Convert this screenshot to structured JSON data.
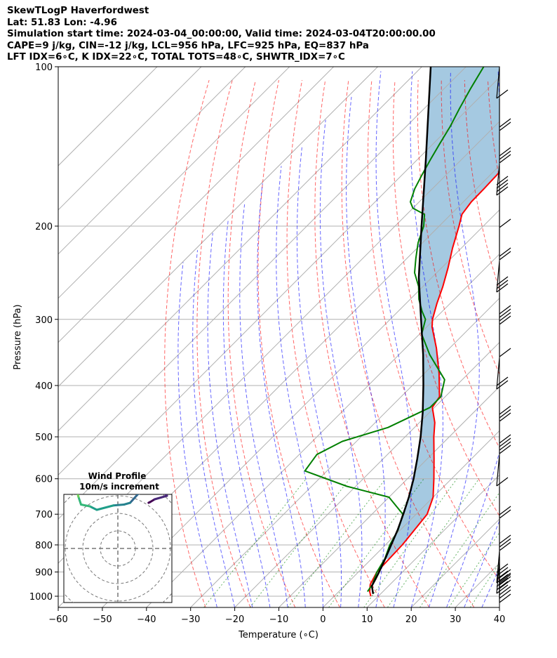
{
  "header": {
    "title": "SkewTLogP Haverfordwest",
    "location": "Lat: 51.83   Lon: -4.96",
    "times": "Simulation start time: 2024-03-04_00:00:00, Valid time: 2024-03-04T20:00:00.00",
    "indices1": "CAPE=9 j/kg, CIN=-12 j/kg, LCL=956 hPa, LFC=925 hPa, EQ=837 hPa",
    "indices2": "LFT IDX=6∘C, K IDX=22∘C, TOTAL TOTS=48∘C, SHWTR_IDX=7∘C"
  },
  "chart_data": [
    {
      "type": "line",
      "chart_kind": "skew-t log-p",
      "xlabel": "Temperature (∘C)",
      "ylabel": "Pressure (hPa)",
      "xlim": [
        -60,
        40
      ],
      "ylim": [
        1050,
        100
      ],
      "y_scale": "log",
      "skew": "isotherms slanted 45 degrees",
      "grid": true,
      "x_ticks": [
        -60,
        -50,
        -40,
        -30,
        -20,
        -10,
        0,
        10,
        20,
        30,
        40
      ],
      "x_tick_labels": [
        "−60",
        "−50",
        "−40",
        "−30",
        "−20",
        "−10",
        "0",
        "10",
        "20",
        "30",
        "40"
      ],
      "y_ticks": [
        100,
        200,
        300,
        400,
        500,
        600,
        700,
        800,
        900,
        1000
      ],
      "y_tick_labels": [
        "100",
        "200",
        "300",
        "400",
        "500",
        "600",
        "700",
        "800",
        "900",
        "1000"
      ],
      "series": [
        {
          "role": "temperature",
          "color": "#ff0000",
          "points": [
            [
              1000,
              8.3
            ],
            [
              980,
              7.0
            ],
            [
              950,
              5.5
            ],
            [
              900,
              4.2
            ],
            [
              850,
              4.0
            ],
            [
              800,
              3.8
            ],
            [
              750,
              3.2
            ],
            [
              700,
              2.5
            ],
            [
              650,
              0.0
            ],
            [
              600,
              -4.0
            ],
            [
              550,
              -8.5
            ],
            [
              500,
              -13.5
            ],
            [
              470,
              -16.5
            ],
            [
              440,
              -20.5
            ],
            [
              420,
              -21.3
            ],
            [
              380,
              -26.6
            ],
            [
              340,
              -33.0
            ],
            [
              310,
              -38.8
            ],
            [
              300,
              -40.4
            ],
            [
              280,
              -43.0
            ],
            [
              260,
              -45.5
            ],
            [
              240,
              -48.5
            ],
            [
              220,
              -52.0
            ],
            [
              200,
              -55.5
            ],
            [
              190,
              -57.5
            ],
            [
              180,
              -58.2
            ],
            [
              170,
              -58.3
            ],
            [
              160,
              -58.5
            ],
            [
              150,
              -59.0
            ],
            [
              140,
              -59.0
            ],
            [
              130,
              -59.0
            ],
            [
              120,
              -59.5
            ],
            [
              110,
              -60.0
            ],
            [
              100,
              -60.5
            ]
          ]
        },
        {
          "role": "dewpoint",
          "color": "#008000",
          "points": [
            [
              980,
              6.5
            ],
            [
              950,
              6.0
            ],
            [
              900,
              4.2
            ],
            [
              850,
              3.0
            ],
            [
              800,
              1.0
            ],
            [
              750,
              -0.5
            ],
            [
              700,
              -3.0
            ],
            [
              650,
              -10.0
            ],
            [
              620,
              -22.0
            ],
            [
              580,
              -35.0
            ],
            [
              540,
              -36.0
            ],
            [
              510,
              -33.2
            ],
            [
              480,
              -26.0
            ],
            [
              440,
              -21.0
            ],
            [
              420,
              -21.0
            ],
            [
              390,
              -24.0
            ],
            [
              350,
              -33.0
            ],
            [
              320,
              -39.5
            ],
            [
              300,
              -42.0
            ],
            [
              290,
              -44.5
            ],
            [
              275,
              -48.0
            ],
            [
              260,
              -51.0
            ],
            [
              245,
              -55.0
            ],
            [
              230,
              -58.0
            ],
            [
              215,
              -61.0
            ],
            [
              200,
              -63.5
            ],
            [
              190,
              -66.0
            ],
            [
              185,
              -70.0
            ],
            [
              180,
              -72.0
            ],
            [
              170,
              -74.0
            ],
            [
              160,
              -75.5
            ],
            [
              150,
              -77.0
            ],
            [
              140,
              -78.5
            ],
            [
              130,
              -80.0
            ],
            [
              120,
              -82.0
            ],
            [
              110,
              -84.0
            ],
            [
              100,
              -86.0
            ]
          ]
        },
        {
          "role": "parcel",
          "color": "#000000",
          "points": [
            [
              990,
              8.3
            ],
            [
              956,
              6.2
            ],
            [
              925,
              5.4
            ],
            [
              900,
              4.7
            ],
            [
              850,
              3.1
            ],
            [
              800,
              1.3
            ],
            [
              750,
              -0.6
            ],
            [
              700,
              -2.9
            ],
            [
              650,
              -5.5
            ],
            [
              600,
              -8.6
            ],
            [
              550,
              -12.3
            ],
            [
              500,
              -16.5
            ],
            [
              450,
              -21.5
            ],
            [
              400,
              -27.5
            ],
            [
              350,
              -34.5
            ],
            [
              300,
              -43.0
            ],
            [
              250,
              -53.0
            ],
            [
              200,
              -64.0
            ],
            [
              150,
              -78.0
            ],
            [
              100,
              -98.0
            ]
          ]
        }
      ]
    },
    {
      "type": "line",
      "title": "Wind Profile",
      "subtitle": "10m/s increment",
      "chart_kind": "hodograph",
      "grid": true,
      "points": [
        [
          3.5,
          5.2
        ],
        [
          3.7,
          5.3
        ],
        [
          4.2,
          5.6
        ],
        [
          5.6,
          6.0
        ],
        [
          4.8,
          6.8
        ],
        [
          3.4,
          6.5
        ],
        [
          3.1,
          6.5
        ],
        [
          2.3,
          6.2
        ],
        [
          1.4,
          5.2
        ],
        [
          0.7,
          5.0
        ],
        [
          -0.5,
          4.9
        ],
        [
          -2.4,
          4.4
        ],
        [
          -3.2,
          4.8
        ],
        [
          -4.2,
          5.0
        ],
        [
          -4.5,
          5.9
        ],
        [
          -5.0,
          8.0
        ],
        [
          -5.5,
          10.5
        ],
        [
          -6.0,
          11.5
        ],
        [
          -8.5,
          13.0
        ]
      ]
    }
  ]
}
